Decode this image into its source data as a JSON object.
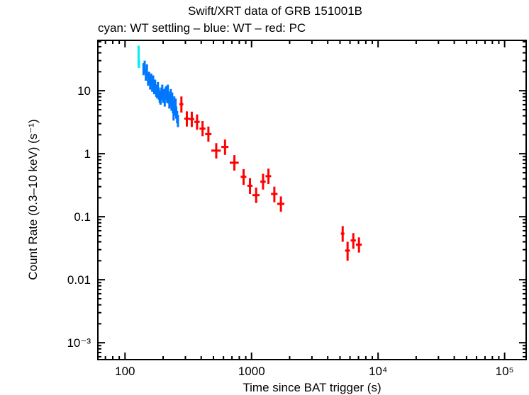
{
  "chart_data": {
    "type": "scatter",
    "title": "Swift/XRT data of GRB 151001B",
    "subtitle": "cyan: WT settling – blue: WT – red: PC",
    "xlabel": "Time since BAT trigger (s)",
    "ylabel": "Count Rate (0.3–10 keV) (s⁻¹)",
    "xscale": "log",
    "yscale": "log",
    "xlim": [
      61,
      148000
    ],
    "ylim": [
      0.00054,
      63
    ],
    "grid": false,
    "x_ticks": [
      {
        "value": 100,
        "label": "100"
      },
      {
        "value": 1000,
        "label": "1000"
      },
      {
        "value": 10000,
        "label": "10⁴"
      },
      {
        "value": 100000,
        "label": "10⁵"
      }
    ],
    "y_ticks": [
      {
        "value": 10,
        "label": "10"
      },
      {
        "value": 1,
        "label": "1"
      },
      {
        "value": 0.1,
        "label": "0.1"
      },
      {
        "value": 0.01,
        "label": "0.01"
      },
      {
        "value": 0.001,
        "label": "10⁻³"
      }
    ],
    "series": [
      {
        "color": "#00eeee",
        "points": [
          {
            "t": 128,
            "rate": 36,
            "t_err": 1,
            "rate_err": [
              12,
              16
            ]
          },
          {
            "t": 129,
            "rate": 27,
            "t_err": 1.5,
            "rate_err": [
              4,
              4
            ]
          }
        ]
      },
      {
        "color": "#0077ff",
        "points": [
          {
            "t": 140,
            "rate": 22
          },
          {
            "t": 143,
            "rate": 24
          },
          {
            "t": 146,
            "rate": 18
          },
          {
            "t": 149,
            "rate": 21
          },
          {
            "t": 152,
            "rate": 15
          },
          {
            "t": 155,
            "rate": 16
          },
          {
            "t": 158,
            "rate": 13
          },
          {
            "t": 161,
            "rate": 15
          },
          {
            "t": 164,
            "rate": 12
          },
          {
            "t": 167,
            "rate": 14
          },
          {
            "t": 170,
            "rate": 11
          },
          {
            "t": 173,
            "rate": 12
          },
          {
            "t": 176,
            "rate": 10
          },
          {
            "t": 179,
            "rate": 9.5
          },
          {
            "t": 182,
            "rate": 11
          },
          {
            "t": 185,
            "rate": 9
          },
          {
            "t": 188,
            "rate": 8
          },
          {
            "t": 191,
            "rate": 7.5
          },
          {
            "t": 194,
            "rate": 9
          },
          {
            "t": 197,
            "rate": 10
          },
          {
            "t": 200,
            "rate": 8
          },
          {
            "t": 203,
            "rate": 8.5
          },
          {
            "t": 206,
            "rate": 7
          },
          {
            "t": 209,
            "rate": 9
          },
          {
            "t": 212,
            "rate": 9.5
          },
          {
            "t": 215,
            "rate": 8
          },
          {
            "t": 218,
            "rate": 10
          },
          {
            "t": 221,
            "rate": 7.8
          },
          {
            "t": 224,
            "rate": 6.5
          },
          {
            "t": 227,
            "rate": 7
          },
          {
            "t": 230,
            "rate": 8.5
          },
          {
            "t": 233,
            "rate": 6
          },
          {
            "t": 236,
            "rate": 7.5
          },
          {
            "t": 239,
            "rate": 5.5
          },
          {
            "t": 242,
            "rate": 4.2
          },
          {
            "t": 245,
            "rate": 6.5
          },
          {
            "t": 248,
            "rate": 5
          },
          {
            "t": 251,
            "rate": 6
          },
          {
            "t": 254,
            "rate": 4.5
          },
          {
            "t": 258,
            "rate": 3.8
          },
          {
            "t": 262,
            "rate": 3.3
          }
        ]
      },
      {
        "color": "#ff0000",
        "points": [
          {
            "t": 279,
            "rate": 6.1,
            "t_err": 10,
            "rate_err": [
              1.6,
              2.0
            ]
          },
          {
            "t": 308,
            "rate": 3.6,
            "t_err": 14,
            "rate_err": [
              0.9,
              1.1
            ]
          },
          {
            "t": 337,
            "rate": 3.55,
            "t_err": 15,
            "rate_err": [
              0.9,
              1.1
            ]
          },
          {
            "t": 371,
            "rate": 3.2,
            "t_err": 18,
            "rate_err": [
              0.8,
              1.0
            ]
          },
          {
            "t": 410,
            "rate": 2.5,
            "t_err": 22,
            "rate_err": [
              0.6,
              0.8
            ]
          },
          {
            "t": 456,
            "rate": 2.05,
            "t_err": 26,
            "rate_err": [
              0.5,
              0.65
            ]
          },
          {
            "t": 526,
            "rate": 1.12,
            "t_err": 45,
            "rate_err": [
              0.28,
              0.35
            ]
          },
          {
            "t": 617,
            "rate": 1.28,
            "t_err": 40,
            "rate_err": [
              0.32,
              0.4
            ]
          },
          {
            "t": 732,
            "rate": 0.72,
            "t_err": 60,
            "rate_err": [
              0.18,
              0.23
            ]
          },
          {
            "t": 865,
            "rate": 0.43,
            "t_err": 45,
            "rate_err": [
              0.11,
              0.14
            ]
          },
          {
            "t": 972,
            "rate": 0.31,
            "t_err": 45,
            "rate_err": [
              0.08,
              0.1
            ]
          },
          {
            "t": 1087,
            "rate": 0.22,
            "t_err": 70,
            "rate_err": [
              0.055,
              0.07
            ]
          },
          {
            "t": 1233,
            "rate": 0.36,
            "t_err": 60,
            "rate_err": [
              0.09,
              0.12
            ]
          },
          {
            "t": 1360,
            "rate": 0.44,
            "t_err": 70,
            "rate_err": [
              0.11,
              0.14
            ]
          },
          {
            "t": 1514,
            "rate": 0.23,
            "t_err": 90,
            "rate_err": [
              0.06,
              0.07
            ]
          },
          {
            "t": 1706,
            "rate": 0.16,
            "t_err": 110,
            "rate_err": [
              0.04,
              0.05
            ]
          },
          {
            "t": 5250,
            "rate": 0.054,
            "t_err": 170,
            "rate_err": [
              0.014,
              0.017
            ]
          },
          {
            "t": 5740,
            "rate": 0.029,
            "t_err": 260,
            "rate_err": [
              0.009,
              0.011
            ]
          },
          {
            "t": 6370,
            "rate": 0.042,
            "t_err": 300,
            "rate_err": [
              0.011,
              0.013
            ]
          },
          {
            "t": 7060,
            "rate": 0.036,
            "t_err": 380,
            "rate_err": [
              0.009,
              0.011
            ]
          }
        ]
      }
    ]
  }
}
